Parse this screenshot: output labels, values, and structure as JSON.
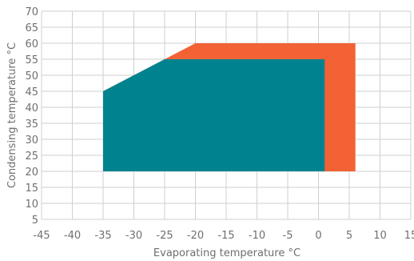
{
  "chart_data": {
    "type": "area",
    "title": "",
    "xlabel": "Evaporating temperature °C",
    "ylabel": "Condensing temperature °C",
    "xlim": [
      -45,
      15
    ],
    "ylim": [
      5,
      70
    ],
    "xticks": [
      -45,
      -40,
      -35,
      -30,
      -25,
      -20,
      -15,
      -10,
      -5,
      0,
      5,
      10,
      15
    ],
    "yticks": [
      5,
      10,
      15,
      20,
      25,
      30,
      35,
      40,
      45,
      50,
      55,
      60,
      65,
      70
    ],
    "grid": true,
    "legend": "none",
    "series": [
      {
        "color": "#f26234",
        "polygon": [
          [
            -35,
            20
          ],
          [
            -35,
            45
          ],
          [
            -20,
            60
          ],
          [
            6,
            60
          ],
          [
            6,
            20
          ]
        ]
      },
      {
        "color": "#00838f",
        "polygon": [
          [
            -35,
            20
          ],
          [
            -35,
            45
          ],
          [
            -25,
            55
          ],
          [
            1,
            55
          ],
          [
            1,
            20
          ]
        ]
      }
    ]
  }
}
